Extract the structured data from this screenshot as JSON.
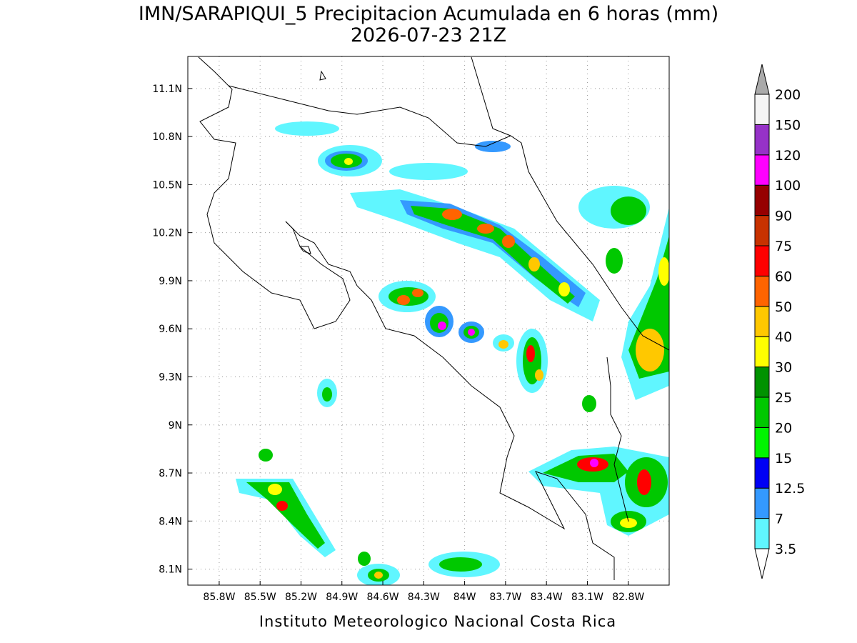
{
  "map": {
    "title": "IMN/SARAPIQUI_5 Precipitacion Acumulada en 6 horas (mm)",
    "subtitle": "2026-07-23 21Z",
    "footer": "Instituto Meteorologico Nacional Costa Rica",
    "xlim": [
      -86.03,
      -82.5
    ],
    "ylim": [
      8.0,
      11.3
    ],
    "xticks": [
      {
        "value": -85.8,
        "label": "85.8W"
      },
      {
        "value": -85.5,
        "label": "85.5W"
      },
      {
        "value": -85.2,
        "label": "85.2W"
      },
      {
        "value": -84.9,
        "label": "84.9W"
      },
      {
        "value": -84.6,
        "label": "84.6W"
      },
      {
        "value": -84.3,
        "label": "84.3W"
      },
      {
        "value": -84.0,
        "label": "84W"
      },
      {
        "value": -83.7,
        "label": "83.7W"
      },
      {
        "value": -83.4,
        "label": "83.4W"
      },
      {
        "value": -83.1,
        "label": "83.1W"
      },
      {
        "value": -82.8,
        "label": "82.8W"
      }
    ],
    "yticks": [
      {
        "value": 8.1,
        "label": "8.1N"
      },
      {
        "value": 8.4,
        "label": "8.4N"
      },
      {
        "value": 8.7,
        "label": "8.7N"
      },
      {
        "value": 9.0,
        "label": "9N"
      },
      {
        "value": 9.3,
        "label": "9.3N"
      },
      {
        "value": 9.6,
        "label": "9.6N"
      },
      {
        "value": 9.9,
        "label": "9.9N"
      },
      {
        "value": 10.2,
        "label": "10.2N"
      },
      {
        "value": 10.5,
        "label": "10.5N"
      },
      {
        "value": 10.8,
        "label": "10.8N"
      },
      {
        "value": 11.1,
        "label": "11.1N"
      }
    ],
    "grid": true,
    "colorbar": {
      "levels": [
        3.5,
        7,
        12.5,
        15,
        20,
        25,
        30,
        40,
        50,
        60,
        75,
        90,
        100,
        120,
        150,
        200
      ],
      "colors": [
        "#60f6ff",
        "#3499ff",
        "#0000f5",
        "#00f500",
        "#00c800",
        "#009200",
        "#ffff00",
        "#ffc800",
        "#ff6400",
        "#ff0000",
        "#c83200",
        "#960000",
        "#ff00ff",
        "#9632c8",
        "#f5f5f5"
      ],
      "under_color": "#ffffff",
      "over_color": "#aaaaaa"
    }
  }
}
